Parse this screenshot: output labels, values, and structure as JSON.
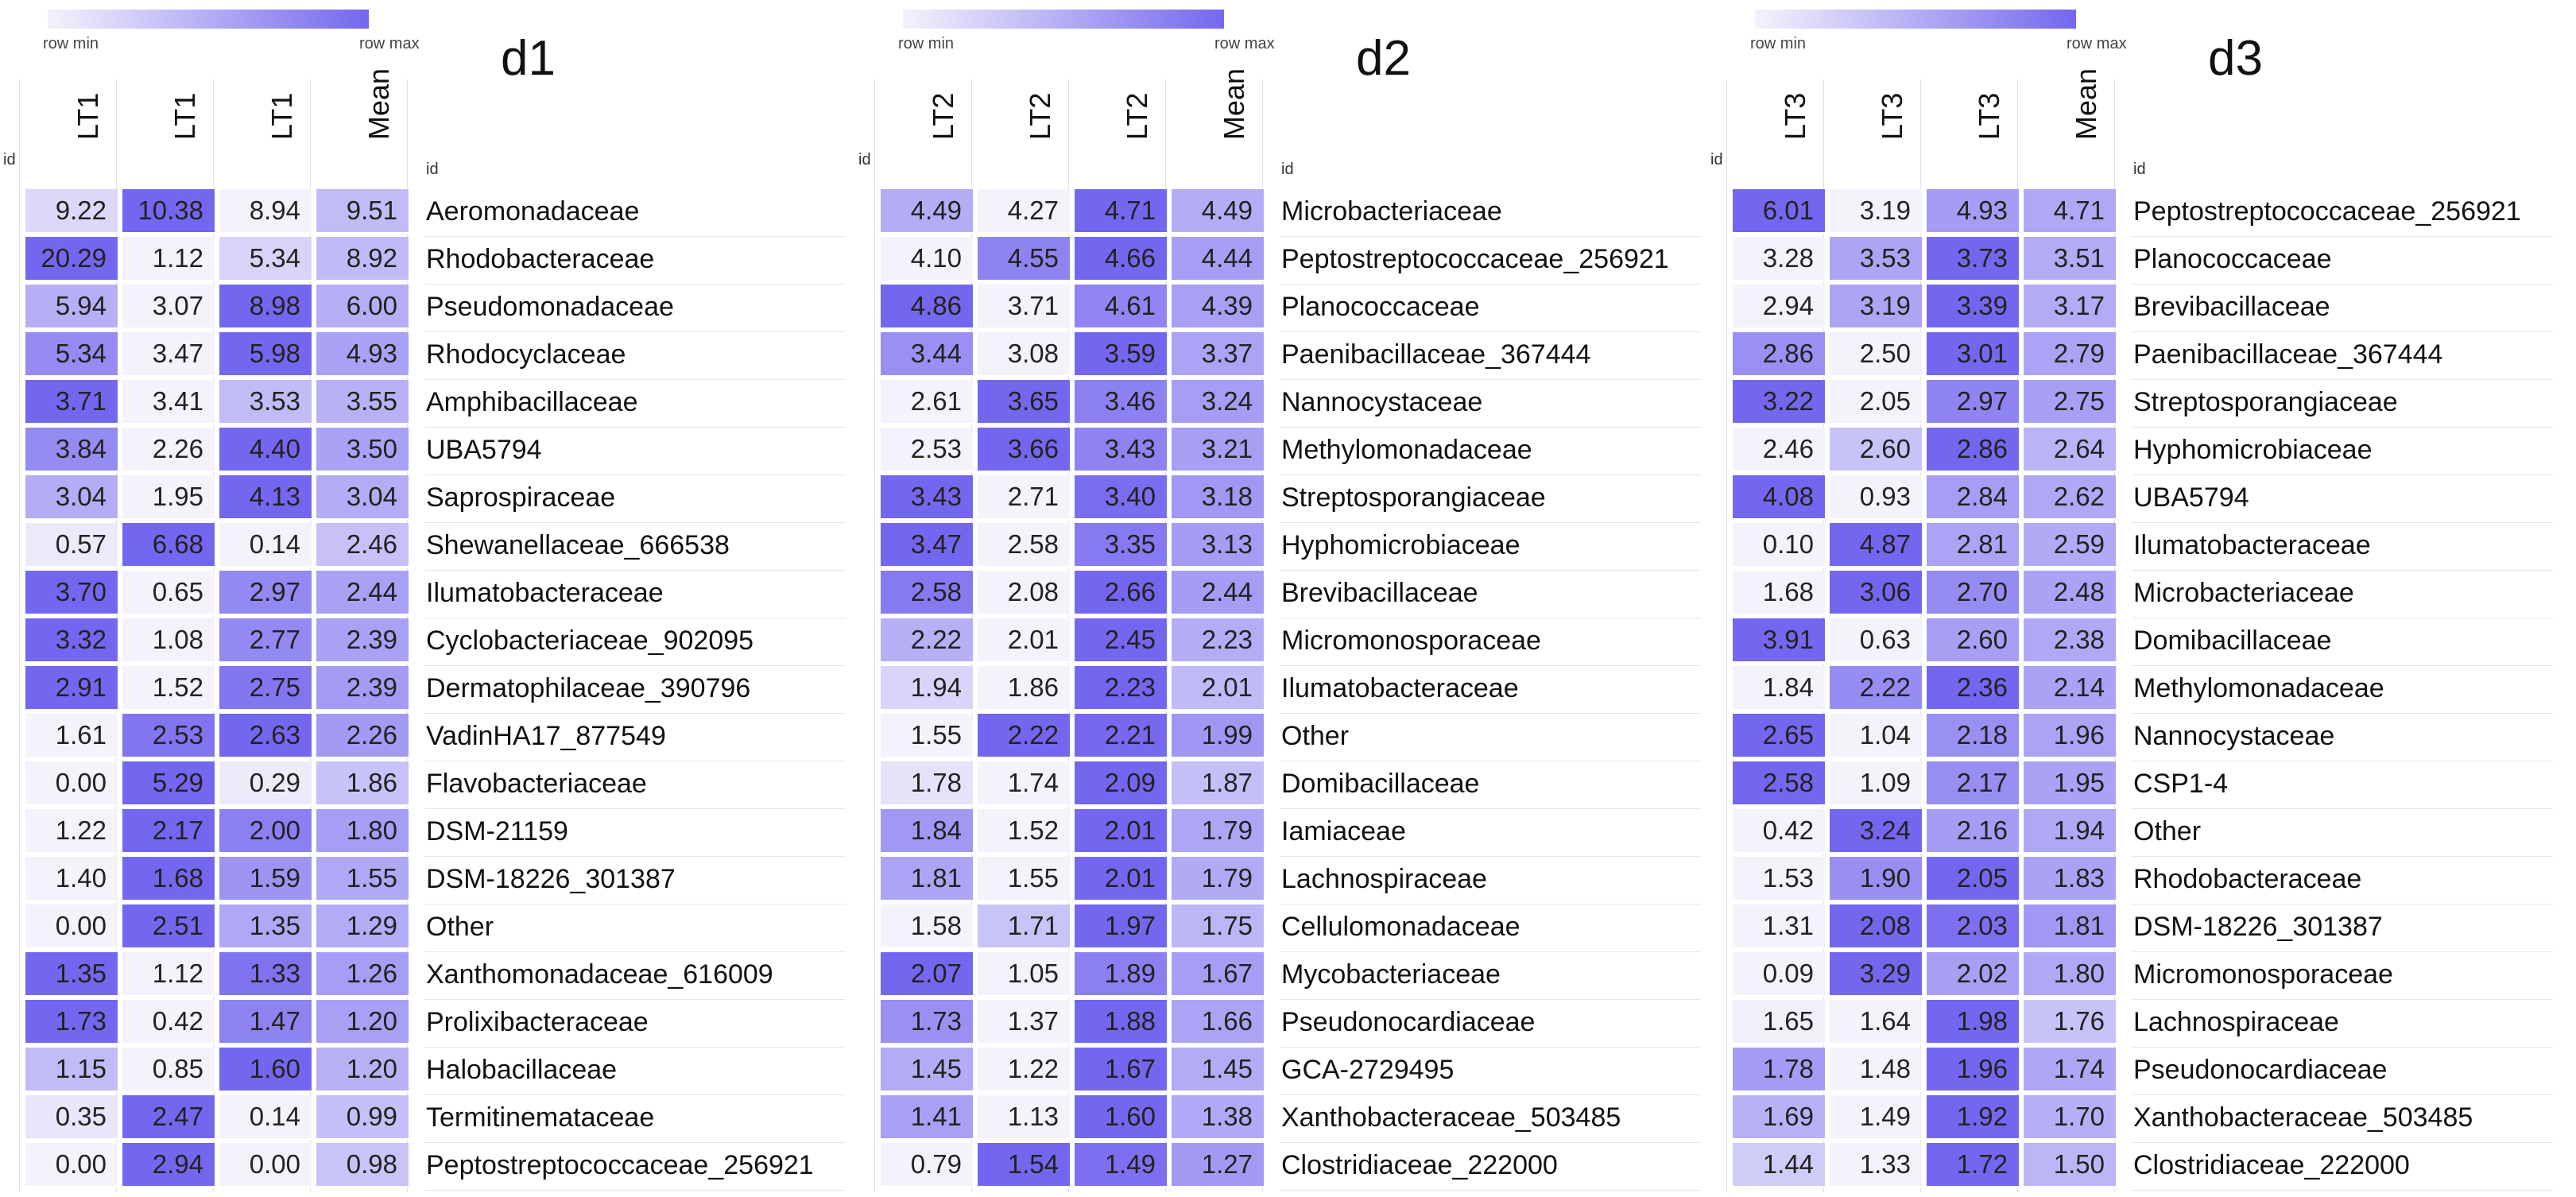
{
  "legend": {
    "min_label": "row min",
    "max_label": "row max",
    "min_color": "#f4f3fb",
    "max_color": "#7467ef"
  },
  "chart_data": [
    {
      "type": "heatmap",
      "title": "d1",
      "id_label": "id",
      "columns": [
        "LT1",
        "LT1",
        "LT1",
        "Mean"
      ],
      "rows": [
        {
          "name": "Aeromonadaceae",
          "values": [
            9.22,
            10.38,
            8.94,
            9.51
          ]
        },
        {
          "name": "Rhodobacteraceae",
          "values": [
            20.29,
            1.12,
            5.34,
            8.92
          ]
        },
        {
          "name": "Pseudomonadaceae",
          "values": [
            5.94,
            3.07,
            8.98,
            6.0
          ]
        },
        {
          "name": "Rhodocyclaceae",
          "values": [
            5.34,
            3.47,
            5.98,
            4.93
          ]
        },
        {
          "name": "Amphibacillaceae",
          "values": [
            3.71,
            3.41,
            3.53,
            3.55
          ]
        },
        {
          "name": "UBA5794",
          "values": [
            3.84,
            2.26,
            4.4,
            3.5
          ]
        },
        {
          "name": "Saprospiraceae",
          "values": [
            3.04,
            1.95,
            4.13,
            3.04
          ]
        },
        {
          "name": "Shewanellaceae_666538",
          "values": [
            0.57,
            6.68,
            0.14,
            2.46
          ]
        },
        {
          "name": "Ilumatobacteraceae",
          "values": [
            3.7,
            0.65,
            2.97,
            2.44
          ]
        },
        {
          "name": "Cyclobacteriaceae_902095",
          "values": [
            3.32,
            1.08,
            2.77,
            2.39
          ]
        },
        {
          "name": "Dermatophilaceae_390796",
          "values": [
            2.91,
            1.52,
            2.75,
            2.39
          ]
        },
        {
          "name": "VadinHA17_877549",
          "values": [
            1.61,
            2.53,
            2.63,
            2.26
          ]
        },
        {
          "name": "Flavobacteriaceae",
          "values": [
            0.0,
            5.29,
            0.29,
            1.86
          ]
        },
        {
          "name": "DSM-21159",
          "values": [
            1.22,
            2.17,
            2.0,
            1.8
          ]
        },
        {
          "name": "DSM-18226_301387",
          "values": [
            1.4,
            1.68,
            1.59,
            1.55
          ]
        },
        {
          "name": "Other",
          "values": [
            0.0,
            2.51,
            1.35,
            1.29
          ]
        },
        {
          "name": "Xanthomonadaceae_616009",
          "values": [
            1.35,
            1.12,
            1.33,
            1.26
          ]
        },
        {
          "name": "Prolixibacteraceae",
          "values": [
            1.73,
            0.42,
            1.47,
            1.2
          ]
        },
        {
          "name": "Halobacillaceae",
          "values": [
            1.15,
            0.85,
            1.6,
            1.2
          ]
        },
        {
          "name": "Termitinemataceae",
          "values": [
            0.35,
            2.47,
            0.14,
            0.99
          ]
        },
        {
          "name": "Peptostreptococcaceae_256921",
          "values": [
            0.0,
            2.94,
            0.0,
            0.98
          ]
        }
      ]
    },
    {
      "type": "heatmap",
      "title": "d2",
      "id_label": "id",
      "columns": [
        "LT2",
        "LT2",
        "LT2",
        "Mean"
      ],
      "rows": [
        {
          "name": "Microbacteriaceae",
          "values": [
            4.49,
            4.27,
            4.71,
            4.49
          ]
        },
        {
          "name": "Peptostreptococcaceae_256921",
          "values": [
            4.1,
            4.55,
            4.66,
            4.44
          ]
        },
        {
          "name": "Planococcaceae",
          "values": [
            4.86,
            3.71,
            4.61,
            4.39
          ]
        },
        {
          "name": "Paenibacillaceae_367444",
          "values": [
            3.44,
            3.08,
            3.59,
            3.37
          ]
        },
        {
          "name": "Nannocystaceae",
          "values": [
            2.61,
            3.65,
            3.46,
            3.24
          ]
        },
        {
          "name": "Methylomonadaceae",
          "values": [
            2.53,
            3.66,
            3.43,
            3.21
          ]
        },
        {
          "name": "Streptosporangiaceae",
          "values": [
            3.43,
            2.71,
            3.4,
            3.18
          ]
        },
        {
          "name": "Hyphomicrobiaceae",
          "values": [
            3.47,
            2.58,
            3.35,
            3.13
          ]
        },
        {
          "name": "Brevibacillaceae",
          "values": [
            2.58,
            2.08,
            2.66,
            2.44
          ]
        },
        {
          "name": "Micromonosporaceae",
          "values": [
            2.22,
            2.01,
            2.45,
            2.23
          ]
        },
        {
          "name": "Ilumatobacteraceae",
          "values": [
            1.94,
            1.86,
            2.23,
            2.01
          ]
        },
        {
          "name": "Other",
          "values": [
            1.55,
            2.22,
            2.21,
            1.99
          ]
        },
        {
          "name": "Domibacillaceae",
          "values": [
            1.78,
            1.74,
            2.09,
            1.87
          ]
        },
        {
          "name": "Iamiaceae",
          "values": [
            1.84,
            1.52,
            2.01,
            1.79
          ]
        },
        {
          "name": "Lachnospiraceae",
          "values": [
            1.81,
            1.55,
            2.01,
            1.79
          ]
        },
        {
          "name": "Cellulomonadaceae",
          "values": [
            1.58,
            1.71,
            1.97,
            1.75
          ]
        },
        {
          "name": "Mycobacteriaceae",
          "values": [
            2.07,
            1.05,
            1.89,
            1.67
          ]
        },
        {
          "name": "Pseudonocardiaceae",
          "values": [
            1.73,
            1.37,
            1.88,
            1.66
          ]
        },
        {
          "name": "GCA-2729495",
          "values": [
            1.45,
            1.22,
            1.67,
            1.45
          ]
        },
        {
          "name": "Xanthobacteraceae_503485",
          "values": [
            1.41,
            1.13,
            1.6,
            1.38
          ]
        },
        {
          "name": "Clostridiaceae_222000",
          "values": [
            0.79,
            1.54,
            1.49,
            1.27
          ]
        }
      ]
    },
    {
      "type": "heatmap",
      "title": "d3",
      "id_label": "id",
      "columns": [
        "LT3",
        "LT3",
        "LT3",
        "Mean"
      ],
      "rows": [
        {
          "name": "Peptostreptococcaceae_256921",
          "values": [
            6.01,
            3.19,
            4.93,
            4.71
          ]
        },
        {
          "name": "Planococcaceae",
          "values": [
            3.28,
            3.53,
            3.73,
            3.51
          ]
        },
        {
          "name": "Brevibacillaceae",
          "values": [
            2.94,
            3.19,
            3.39,
            3.17
          ]
        },
        {
          "name": "Paenibacillaceae_367444",
          "values": [
            2.86,
            2.5,
            3.01,
            2.79
          ]
        },
        {
          "name": "Streptosporangiaceae",
          "values": [
            3.22,
            2.05,
            2.97,
            2.75
          ]
        },
        {
          "name": "Hyphomicrobiaceae",
          "values": [
            2.46,
            2.6,
            2.86,
            2.64
          ]
        },
        {
          "name": "UBA5794",
          "values": [
            4.08,
            0.93,
            2.84,
            2.62
          ]
        },
        {
          "name": "Ilumatobacteraceae",
          "values": [
            0.1,
            4.87,
            2.81,
            2.59
          ]
        },
        {
          "name": "Microbacteriaceae",
          "values": [
            1.68,
            3.06,
            2.7,
            2.48
          ]
        },
        {
          "name": "Domibacillaceae",
          "values": [
            3.91,
            0.63,
            2.6,
            2.38
          ]
        },
        {
          "name": "Methylomonadaceae",
          "values": [
            1.84,
            2.22,
            2.36,
            2.14
          ]
        },
        {
          "name": "Nannocystaceae",
          "values": [
            2.65,
            1.04,
            2.18,
            1.96
          ]
        },
        {
          "name": "CSP1-4",
          "values": [
            2.58,
            1.09,
            2.17,
            1.95
          ]
        },
        {
          "name": "Other",
          "values": [
            0.42,
            3.24,
            2.16,
            1.94
          ]
        },
        {
          "name": "Rhodobacteraceae",
          "values": [
            1.53,
            1.9,
            2.05,
            1.83
          ]
        },
        {
          "name": "DSM-18226_301387",
          "values": [
            1.31,
            2.08,
            2.03,
            1.81
          ]
        },
        {
          "name": "Micromonosporaceae",
          "values": [
            0.09,
            3.29,
            2.02,
            1.8
          ]
        },
        {
          "name": "Lachnospiraceae",
          "values": [
            1.65,
            1.64,
            1.98,
            1.76
          ]
        },
        {
          "name": "Pseudonocardiaceae",
          "values": [
            1.78,
            1.48,
            1.96,
            1.74
          ]
        },
        {
          "name": "Xanthobacteraceae_503485",
          "values": [
            1.69,
            1.49,
            1.92,
            1.7
          ]
        },
        {
          "name": "Clostridiaceae_222000",
          "values": [
            1.44,
            1.33,
            1.72,
            1.5
          ]
        }
      ]
    }
  ]
}
